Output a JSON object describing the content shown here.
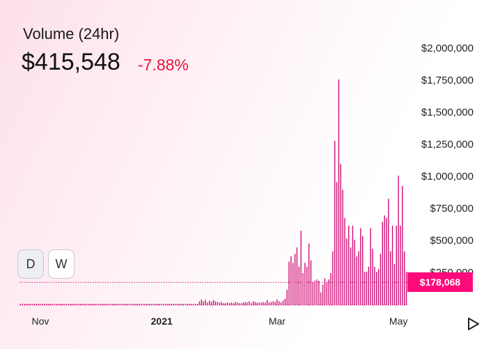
{
  "header": {
    "title": "Volume (24hr)",
    "value": "$415,548",
    "change": "-7.88%"
  },
  "buttons": [
    {
      "label": "D",
      "active": true
    },
    {
      "label": "W",
      "active": false
    }
  ],
  "current_label": "$178,068",
  "play_icon": "play-icon",
  "colors": {
    "bar": "#d11177",
    "accent": "#ff0a7a",
    "change": "#e5143b"
  },
  "chart_data": {
    "type": "bar",
    "title": "Volume (24hr)",
    "ylim": [
      0,
      2000000
    ],
    "y_ticks": [
      "$2,000,000",
      "$1,750,000",
      "$1,500,000",
      "$1,250,000",
      "$1,000,000",
      "$750,000",
      "$500,000",
      "$250,000"
    ],
    "x_ticks": [
      {
        "label": "Nov",
        "index": 10,
        "bold": false
      },
      {
        "label": "2021",
        "index": 71,
        "bold": true
      },
      {
        "label": "Mar",
        "index": 129,
        "bold": false
      },
      {
        "label": "May",
        "index": 190,
        "bold": false
      }
    ],
    "current_value": 178068,
    "values": [
      10000,
      10000,
      10000,
      10000,
      10000,
      10000,
      10000,
      10000,
      10000,
      10000,
      10000,
      10000,
      10000,
      10000,
      10000,
      10000,
      10000,
      10000,
      10000,
      10000,
      10000,
      10000,
      10000,
      10000,
      10000,
      10000,
      10000,
      10000,
      10000,
      10000,
      10000,
      10000,
      10000,
      10000,
      10000,
      10000,
      10000,
      10000,
      10000,
      10000,
      10000,
      10000,
      10000,
      10000,
      10000,
      10000,
      10000,
      10000,
      10000,
      10000,
      10000,
      10000,
      10000,
      10000,
      10000,
      10000,
      10000,
      10000,
      10000,
      10000,
      10000,
      10000,
      10000,
      10000,
      10000,
      10000,
      10000,
      10000,
      10000,
      10000,
      10000,
      10000,
      10000,
      10000,
      10000,
      10000,
      10000,
      10000,
      10000,
      10000,
      10000,
      10000,
      10000,
      10000,
      10000,
      10000,
      10000,
      10000,
      10000,
      10000,
      30000,
      45000,
      30000,
      40000,
      20000,
      35000,
      25000,
      40000,
      30000,
      25000,
      20000,
      25000,
      15000,
      15000,
      20000,
      15000,
      20000,
      15000,
      25000,
      20000,
      15000,
      15000,
      20000,
      25000,
      20000,
      30000,
      15000,
      30000,
      25000,
      20000,
      20000,
      20000,
      25000,
      20000,
      40000,
      20000,
      25000,
      30000,
      25000,
      45000,
      30000,
      20000,
      35000,
      50000,
      120000,
      340000,
      380000,
      330000,
      400000,
      450000,
      300000,
      580000,
      250000,
      330000,
      300000,
      480000,
      350000,
      180000,
      190000,
      200000,
      190000,
      100000,
      160000,
      210000,
      180000,
      200000,
      250000,
      420000,
      1280000,
      960000,
      1760000,
      1100000,
      900000,
      680000,
      520000,
      620000,
      450000,
      620000,
      510000,
      380000,
      420000,
      600000,
      540000,
      260000,
      260000,
      300000,
      600000,
      440000,
      300000,
      260000,
      280000,
      400000,
      650000,
      700000,
      680000,
      830000,
      420000,
      620000,
      320000,
      620000,
      1010000,
      620000,
      930000,
      420000,
      260000
    ]
  }
}
